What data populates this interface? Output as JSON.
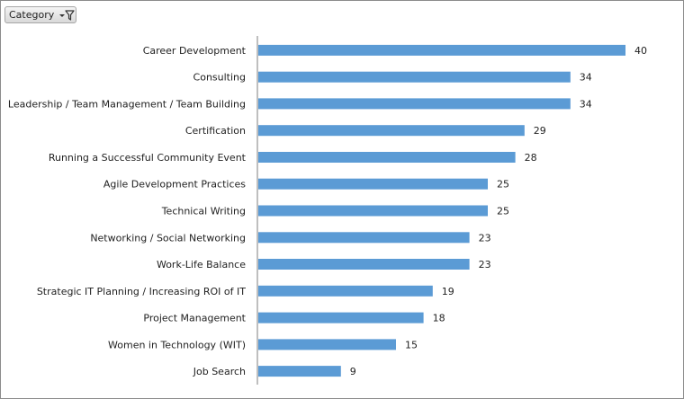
{
  "filter_button": {
    "label": "Category",
    "icons": [
      "dropdown-arrow-icon",
      "funnel-filter-icon"
    ]
  },
  "colors": {
    "bar": "#5b9bd5",
    "axis": "#7f7f7f"
  },
  "chart_data": {
    "type": "bar",
    "orientation": "horizontal",
    "title": "",
    "xlabel": "",
    "ylabel": "",
    "categories": [
      "Career Development",
      "Consulting",
      "Leadership / Team Management / Team Building",
      "Certification",
      "Running a Successful Community Event",
      "Agile Development Practices",
      "Technical Writing",
      "Networking / Social Networking",
      "Work-Life Balance",
      "Strategic IT Planning / Increasing ROI of IT",
      "Project Management",
      "Women in Technology (WIT)",
      "Job Search"
    ],
    "values": [
      40,
      34,
      34,
      29,
      28,
      25,
      25,
      23,
      23,
      19,
      18,
      15,
      9
    ],
    "data_labels": true,
    "grid": false,
    "legend": "none"
  }
}
